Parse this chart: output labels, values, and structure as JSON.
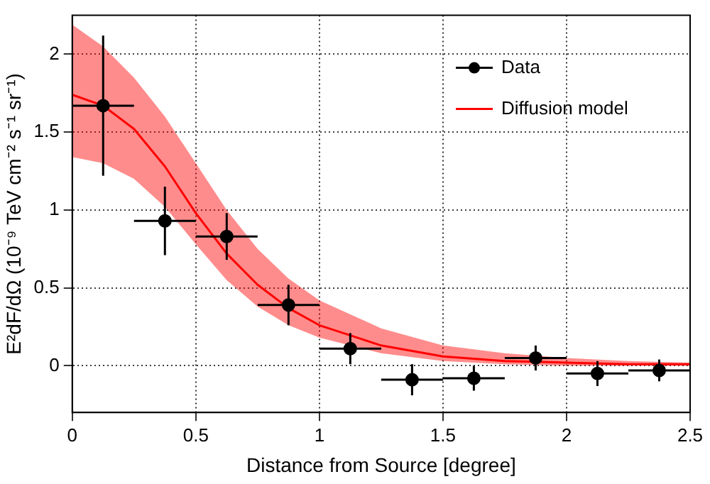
{
  "chart_data": {
    "type": "scatter",
    "xlabel": "Distance from Source [degree]",
    "ylabel": "E²dF/dΩ (10⁻⁹ TeV cm⁻² s⁻¹ sr⁻¹)",
    "xlim": [
      0,
      2.5
    ],
    "xticks": [
      0,
      0.5,
      1,
      1.5,
      2,
      2.5
    ],
    "ylim": [
      -0.3,
      2.25
    ],
    "yticks": [
      0,
      0.5,
      1,
      1.5,
      2
    ],
    "grid": true,
    "legend": "top right",
    "marker": "circle",
    "series": [
      {
        "name": "Data",
        "type": "scatter",
        "color": "#000000",
        "x": [
          0.125,
          0.375,
          0.625,
          0.875,
          1.125,
          1.375,
          1.625,
          1.875,
          2.125,
          2.375
        ],
        "values": [
          1.67,
          0.93,
          0.83,
          0.39,
          0.11,
          -0.09,
          -0.08,
          0.05,
          -0.05,
          -0.03
        ],
        "errors": [
          0.45,
          0.22,
          0.15,
          0.13,
          0.1,
          0.1,
          0.08,
          0.08,
          0.08,
          0.07
        ],
        "xerrors": [
          0.125,
          0.125,
          0.125,
          0.125,
          0.125,
          0.125,
          0.125,
          0.125,
          0.125,
          0.125
        ]
      },
      {
        "name": "Diffusion model",
        "type": "line",
        "marker": "none",
        "color": "#ff0000",
        "x": [
          0,
          0.125,
          0.25,
          0.375,
          0.5,
          0.625,
          0.75,
          0.875,
          1,
          1.25,
          1.5,
          1.75,
          2,
          2.25,
          2.5
        ],
        "values": [
          1.74,
          1.67,
          1.52,
          1.28,
          0.98,
          0.72,
          0.52,
          0.37,
          0.26,
          0.13,
          0.06,
          0.03,
          0.02,
          0.01,
          0.01
        ],
        "upper": [
          2.19,
          2.05,
          1.85,
          1.6,
          1.3,
          1.0,
          0.75,
          0.56,
          0.42,
          0.24,
          0.13,
          0.08,
          0.05,
          0.03,
          0.02
        ],
        "lower": [
          1.34,
          1.3,
          1.2,
          1.02,
          0.78,
          0.55,
          0.38,
          0.26,
          0.18,
          0.08,
          0.03,
          0.01,
          0,
          0,
          0
        ]
      }
    ]
  }
}
